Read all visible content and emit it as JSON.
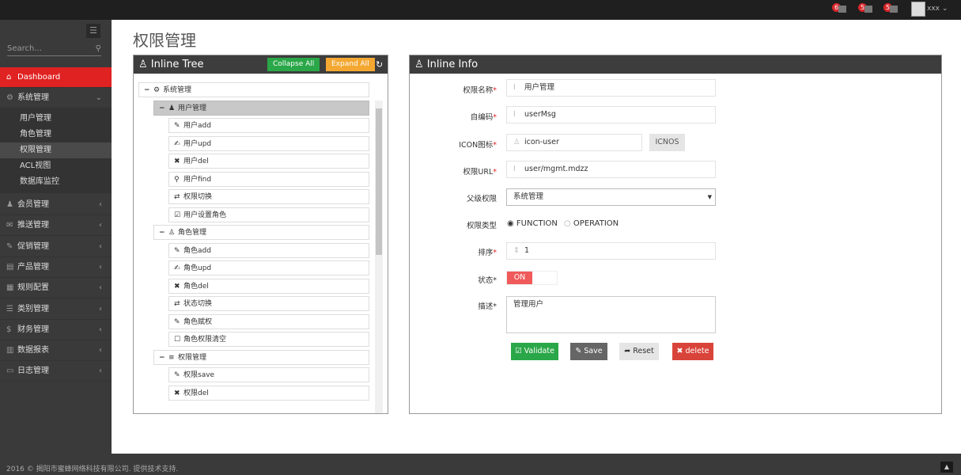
{
  "header": {
    "notifications": [
      {
        "count": "6",
        "icon": "warning-icon"
      },
      {
        "count": "5",
        "icon": "envelope-icon"
      },
      {
        "count": "5",
        "icon": "calendar-icon"
      }
    ],
    "user": "xxx"
  },
  "sidebar": {
    "search_placeholder": "Search...",
    "dashboard": "Dashboard",
    "system": "系统管理",
    "sub_items": [
      "用户管理",
      "角色管理",
      "权限管理",
      "ACL视图",
      "数据库监控"
    ],
    "selected_sub": "权限管理",
    "items": [
      "会员管理",
      "推送管理",
      "促销管理",
      "产品管理",
      "规则配置",
      "类别管理",
      "财务管理",
      "数据报表",
      "日志管理"
    ]
  },
  "page_title": "权限管理",
  "tree_panel": {
    "title": "Inline Tree",
    "collapse_all": "Collapse All",
    "expand_all": "Expand All",
    "nodes": [
      {
        "level": 0,
        "label": "系统管理",
        "icon": "cogs-icon",
        "toggle": "−"
      },
      {
        "level": 1,
        "label": "用户管理",
        "icon": "user-icon",
        "toggle": "−",
        "selected": true
      },
      {
        "level": 2,
        "label": "用户add",
        "icon": "pencil-icon"
      },
      {
        "level": 2,
        "label": "用户upd",
        "icon": "edit-icon"
      },
      {
        "level": 2,
        "label": "用户del",
        "icon": "times-icon"
      },
      {
        "level": 2,
        "label": "用户find",
        "icon": "search-icon"
      },
      {
        "level": 2,
        "label": "权限切换",
        "icon": "retweet-icon"
      },
      {
        "level": 2,
        "label": "用户设置角色",
        "icon": "check-square-icon"
      },
      {
        "level": 1,
        "label": "角色管理",
        "icon": "sitemap-icon",
        "toggle": "−"
      },
      {
        "level": 2,
        "label": "角色add",
        "icon": "pencil-icon"
      },
      {
        "level": 2,
        "label": "角色upd",
        "icon": "edit-icon"
      },
      {
        "level": 2,
        "label": "角色del",
        "icon": "times-icon"
      },
      {
        "level": 2,
        "label": "状态切换",
        "icon": "retweet-icon"
      },
      {
        "level": 2,
        "label": "角色赋权",
        "icon": "pencil-icon"
      },
      {
        "level": 2,
        "label": "角色权限清空",
        "icon": "square-icon"
      },
      {
        "level": 1,
        "label": "权限管理",
        "icon": "bars-icon",
        "toggle": "−"
      },
      {
        "level": 2,
        "label": "权限save",
        "icon": "pencil-icon"
      },
      {
        "level": 2,
        "label": "权限del",
        "icon": "times-icon"
      }
    ]
  },
  "info_panel": {
    "title": "Inline Info",
    "fields": {
      "name": {
        "label": "权限名称",
        "value": "用户管理"
      },
      "code": {
        "label": "自编码",
        "value": "userMsg"
      },
      "icon": {
        "label": "ICON图标",
        "value": "icon-user",
        "button": "ICNOS"
      },
      "url": {
        "label": "权限URL",
        "value": "user/mgmt.mdzz"
      },
      "parent": {
        "label": "父级权限",
        "value": "系统管理"
      },
      "type": {
        "label": "权限类型",
        "options": [
          "FUNCTION",
          "OPERATION"
        ],
        "selected": "FUNCTION"
      },
      "order": {
        "label": "排序",
        "value": "1"
      },
      "status": {
        "label": "状态",
        "value": "ON"
      },
      "desc": {
        "label": "描述",
        "value": "管理用户"
      }
    },
    "buttons": {
      "validate": "Validate",
      "save": "Save",
      "reset": "Reset",
      "delete": "delete"
    }
  },
  "footer": "2016 © 揭阳市蜜蜂网络科技有限公司. 提供技术支持.",
  "colors": {
    "accent": "#e02222",
    "validate": "#2aa748",
    "save": "#666666",
    "reset": "#e5e5e5",
    "delete": "#d9443a",
    "collapse": "#2aa748",
    "expand": "#f4a832"
  }
}
